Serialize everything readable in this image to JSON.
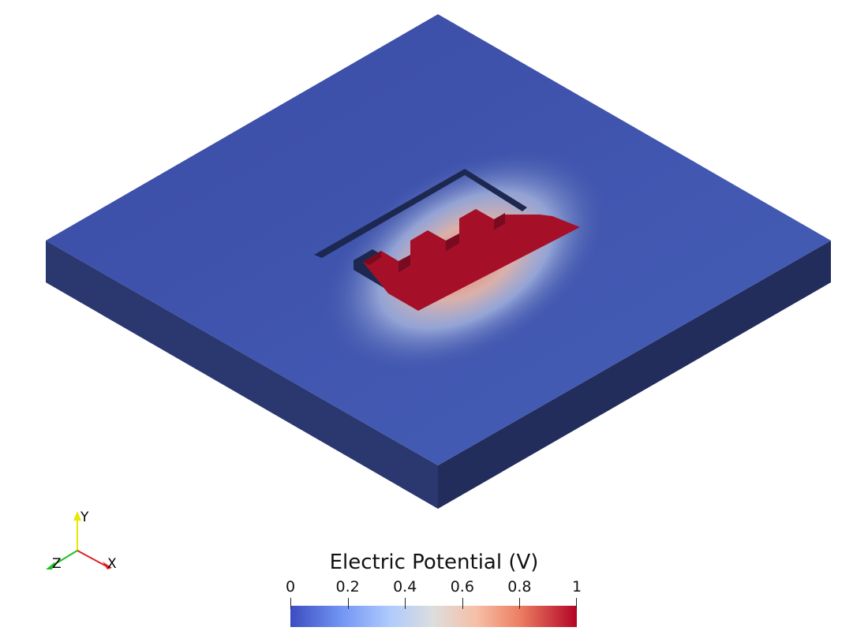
{
  "scene": {
    "description_name": "interdigitated electrode slab",
    "colors": {
      "top_face": "#3f51a7",
      "left_side": "#2b3870",
      "right_side": "#222d5c",
      "slot": "#1d2850",
      "electrode": "#a50f28",
      "electrode_wall": "#7a0a1f"
    }
  },
  "axes_triad": {
    "y_label": "Y",
    "x_label": "X",
    "z_label": "Z",
    "colors": {
      "x": "#e02020",
      "y": "#e8e800",
      "z": "#20c020"
    }
  },
  "legend": {
    "title": "Electric Potential (V)",
    "range": [
      0,
      1
    ],
    "ticks": [
      {
        "value": 0,
        "label": "0"
      },
      {
        "value": 0.2,
        "label": "0.2"
      },
      {
        "value": 0.4,
        "label": "0.4"
      },
      {
        "value": 0.6,
        "label": "0.6"
      },
      {
        "value": 0.8,
        "label": "0.8"
      },
      {
        "value": 1,
        "label": "1"
      }
    ]
  }
}
